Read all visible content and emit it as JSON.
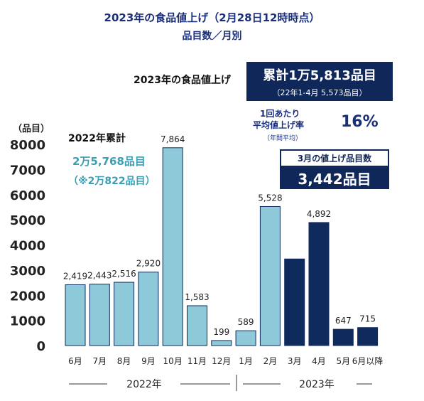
{
  "header": {
    "title": "2023年の食品値上げ（2月28日12時時点）",
    "subtitle": "品目数／月別"
  },
  "left_summary": {
    "title": "2022年累計",
    "total": "2万5,768品目",
    "alt_total": "（※2万822品目）"
  },
  "right_summary": {
    "label": "2023年の食品値上げ",
    "total": "累計1万5,813品目",
    "sub": "（22年1-4月 5,573品目）",
    "rate_label_1": "1回あたり",
    "rate_label_2": "平均値上げ率",
    "rate_note": "（年間平均）",
    "rate_value": "16%"
  },
  "march_callout": {
    "label": "3月の値上げ品目数",
    "value": "3,442品目"
  },
  "year_labels": {
    "y2022": "2022年",
    "y2023": "2023年"
  },
  "colors": {
    "light_bar": "#8ec9d9",
    "dark_bar": "#0f2a5c",
    "title": "#1a2f7a",
    "teal_text": "#3a9fb5"
  },
  "chart_data": {
    "type": "bar",
    "ylabel": "（品目）",
    "ylim": [
      0,
      8000
    ],
    "yticks": [
      0,
      1000,
      2000,
      3000,
      4000,
      5000,
      6000,
      7000,
      8000
    ],
    "categories": [
      "6月",
      "7月",
      "8月",
      "9月",
      "10月",
      "11月",
      "12月",
      "1月",
      "2月",
      "3月",
      "4月",
      "5月",
      "6月以降"
    ],
    "values": [
      2419,
      2443,
      2516,
      2920,
      7864,
      1583,
      199,
      589,
      5528,
      3442,
      4892,
      647,
      715
    ],
    "value_labels": [
      "2,419",
      "2,443",
      "2,516",
      "2,920",
      "7,864",
      "1,583",
      "199",
      "589",
      "5,528",
      "",
      "4,892",
      "647",
      "715"
    ],
    "bar_styles": [
      "light",
      "light",
      "light",
      "light",
      "light",
      "light",
      "light",
      "light",
      "light",
      "dark",
      "dark",
      "dark",
      "dark"
    ]
  }
}
